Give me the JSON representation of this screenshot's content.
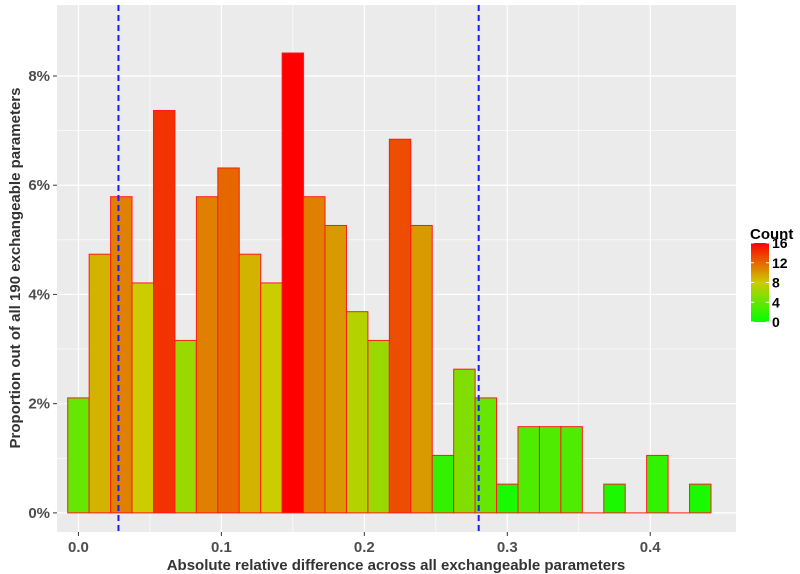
{
  "chart_data": {
    "type": "bar",
    "xlabel": "Absolute relative difference across all exchangeable parameters",
    "ylabel": "Proportion out of all 190 exchangeable parameters",
    "xlim": [
      -0.015,
      0.46
    ],
    "ylim": [
      -0.0035,
      0.093
    ],
    "x_ticks": [
      0.0,
      0.1,
      0.2,
      0.3,
      0.4
    ],
    "x_tick_labels": [
      "0.0",
      "0.1",
      "0.2",
      "0.3",
      "0.4"
    ],
    "y_ticks": [
      0,
      0.02,
      0.04,
      0.06,
      0.08
    ],
    "y_tick_labels": [
      "0%",
      "2%",
      "4%",
      "6%",
      "8%"
    ],
    "bin_width": 0.015,
    "bin_centers": [
      0.0,
      0.015,
      0.03,
      0.045,
      0.06,
      0.075,
      0.09,
      0.105,
      0.12,
      0.135,
      0.15,
      0.165,
      0.18,
      0.195,
      0.21,
      0.225,
      0.24,
      0.255,
      0.27,
      0.285,
      0.3,
      0.315,
      0.33,
      0.345,
      0.36,
      0.375,
      0.39,
      0.405,
      0.42,
      0.435
    ],
    "counts": [
      4,
      9,
      11,
      8,
      14,
      6,
      11,
      12,
      9,
      8,
      16,
      11,
      10,
      7,
      6,
      13,
      10,
      2,
      5,
      4,
      1,
      3,
      3,
      3,
      0,
      1,
      0,
      2,
      0,
      1
    ],
    "total": 190,
    "vlines": [
      0.028,
      0.28
    ],
    "vline_color": "#1a1aff",
    "bar_outline": "#ff1a1a",
    "panel_background": "#ebebeb",
    "grid": true,
    "legend": {
      "title": "Count",
      "labels": [
        "16",
        "12",
        "8",
        "4",
        "0"
      ],
      "label_values": [
        16,
        12,
        8,
        4,
        0
      ],
      "low_color": "#00ff00",
      "mid_color": "#cccc00",
      "high_color": "#ff0000",
      "placement": "right"
    }
  }
}
